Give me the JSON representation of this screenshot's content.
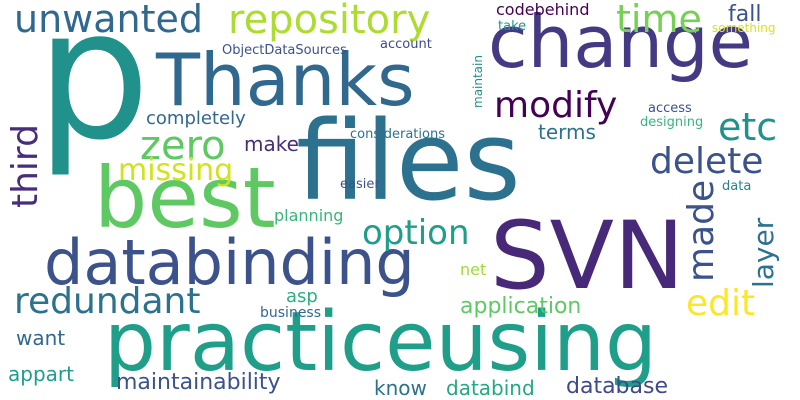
{
  "words": [
    {
      "text": "p",
      "color": "#21918c"
    },
    {
      "text": "files",
      "color": "#2c728e"
    },
    {
      "text": "SVN",
      "color": "#482878"
    },
    {
      "text": "practiceusing",
      "color": "#1f9e89"
    },
    {
      "text": "best",
      "color": "#5ec962"
    },
    {
      "text": "change",
      "color": "#443983"
    },
    {
      "text": "Thanks",
      "color": "#31688e"
    },
    {
      "text": "databinding",
      "color": "#3b528b"
    },
    {
      "text": "repository",
      "color": "#addc30"
    },
    {
      "text": "unwanted",
      "color": "#31688e"
    },
    {
      "text": "modify",
      "color": "#440154"
    },
    {
      "text": "redundant",
      "color": "#2c728e"
    },
    {
      "text": "zero",
      "color": "#5ec962"
    },
    {
      "text": "delete",
      "color": "#3b528b"
    },
    {
      "text": "time",
      "color": "#75d054"
    },
    {
      "text": "etc",
      "color": "#21918c"
    },
    {
      "text": "edit",
      "color": "#fde725"
    },
    {
      "text": "option",
      "color": "#1f9e89"
    },
    {
      "text": "made",
      "color": "#3b528b"
    },
    {
      "text": "third",
      "color": "#472d7b"
    },
    {
      "text": "layer",
      "color": "#2c728e"
    },
    {
      "text": "missing",
      "color": "#d2e21b"
    },
    {
      "text": "maintainability",
      "color": "#3b528b"
    },
    {
      "text": "fall",
      "color": "#3b528b"
    },
    {
      "text": "application",
      "color": "#5ec962"
    },
    {
      "text": "make",
      "color": "#472d7b"
    },
    {
      "text": "terms",
      "color": "#2c728e"
    },
    {
      "text": "database",
      "color": "#3e4a89"
    },
    {
      "text": "know",
      "color": "#2c728e"
    },
    {
      "text": "databind",
      "color": "#22a884"
    },
    {
      "text": "completely",
      "color": "#31688e"
    },
    {
      "text": "codebehind",
      "color": "#440154"
    },
    {
      "text": "want",
      "color": "#31688e"
    },
    {
      "text": "appart",
      "color": "#1f9e89"
    },
    {
      "text": "planning",
      "color": "#35b779"
    },
    {
      "text": "asp",
      "color": "#2ab07f"
    },
    {
      "text": "net",
      "color": "#a0da39"
    },
    {
      "text": "business",
      "color": "#31688e"
    },
    {
      "text": "ObjectDataSources",
      "color": "#3b528b"
    },
    {
      "text": "account",
      "color": "#3e4a89"
    },
    {
      "text": "take",
      "color": "#21918c"
    },
    {
      "text": "something",
      "color": "#d8e219"
    },
    {
      "text": "access",
      "color": "#3b528b"
    },
    {
      "text": "designing",
      "color": "#35b779"
    },
    {
      "text": "considerations",
      "color": "#2c728e"
    },
    {
      "text": "easier",
      "color": "#3b528b"
    },
    {
      "text": "data",
      "color": "#26828e"
    },
    {
      "text": "maintain",
      "color": "#21918c"
    }
  ]
}
